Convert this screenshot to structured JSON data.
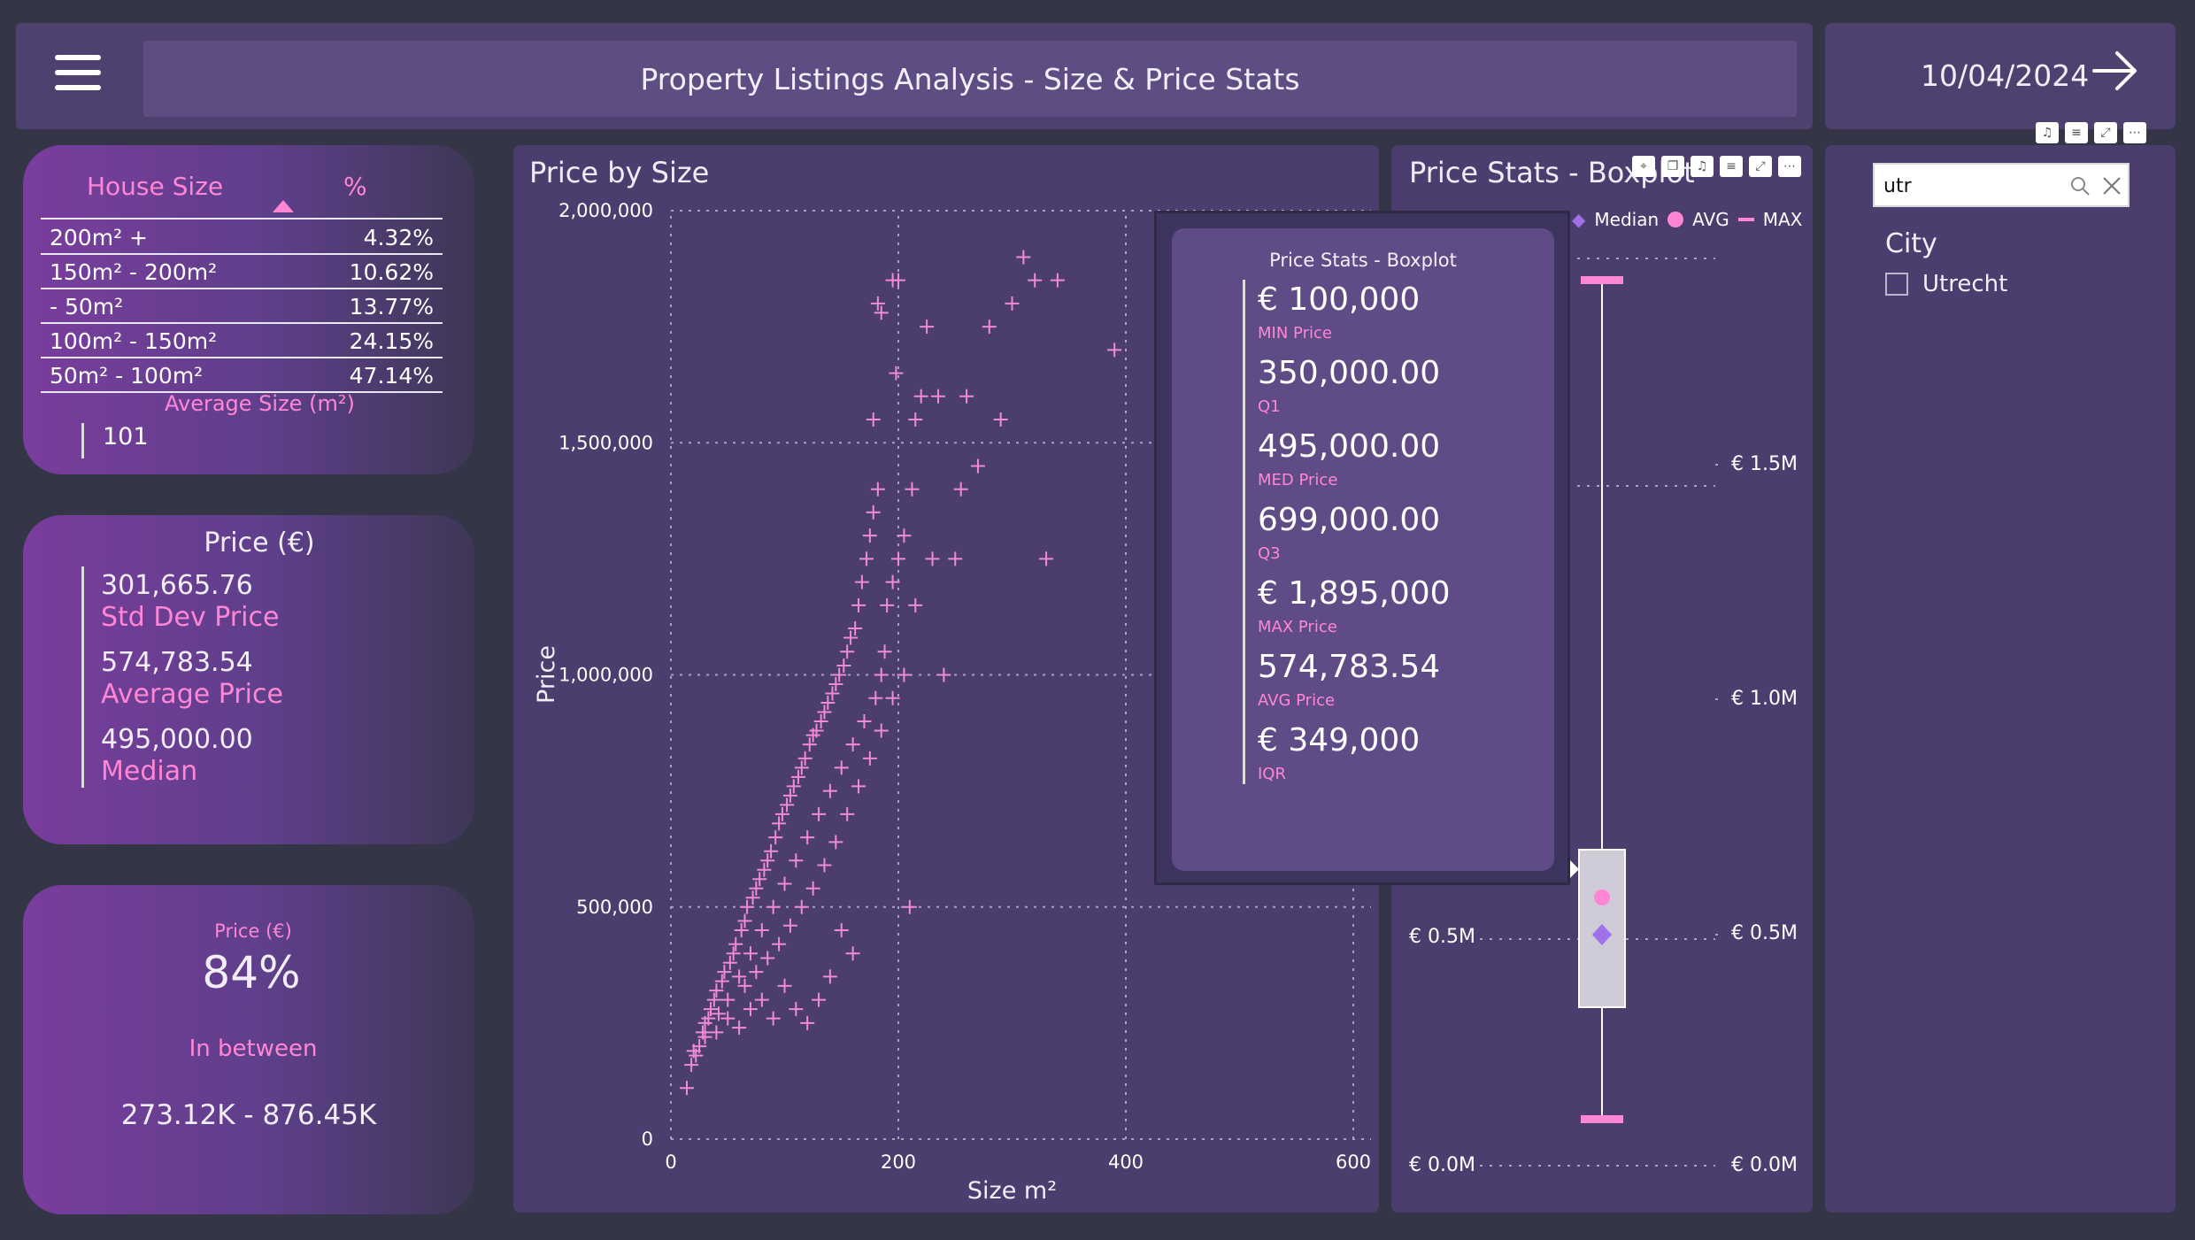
{
  "header": {
    "title": "Property Listings Analysis - Size & Price Stats",
    "date": "10/04/2024"
  },
  "house_size": {
    "col_size": "House Size",
    "col_pct": "%",
    "rows": [
      {
        "label": "200m² +",
        "pct": "4.32%"
      },
      {
        "label": "150m² - 200m²",
        "pct": "10.62%"
      },
      {
        "label": "- 50m²",
        "pct": "13.77%"
      },
      {
        "label": "100m² - 150m²",
        "pct": "24.15%"
      },
      {
        "label": "50m² - 100m²",
        "pct": "47.14%"
      }
    ],
    "avg_label": "Average Size (m²)",
    "avg_value": "101"
  },
  "price_card": {
    "title": "Price (€)",
    "std_value": "301,665.76",
    "std_label": "Std Dev Price",
    "avg_value": "574,783.54",
    "avg_label": "Average Price",
    "median_value": "495,000.00",
    "median_label": "Median"
  },
  "pct_card": {
    "title": "Price (€)",
    "value": "84%",
    "label": "In between",
    "range": "273.12K - 876.45K"
  },
  "chart_data": {
    "type": "scatter",
    "title": "Price by Size",
    "xlabel": "Size m²",
    "ylabel": "Price",
    "xlim": [
      0,
      600
    ],
    "ylim": [
      0,
      2000000
    ],
    "x_ticks": [
      "0",
      "200",
      "400",
      "600"
    ],
    "y_ticks": [
      "0",
      "500,000",
      "1,000,000",
      "1,500,000",
      "2,000,000"
    ],
    "points": [
      [
        14,
        110000
      ],
      [
        18,
        160000
      ],
      [
        22,
        180000
      ],
      [
        25,
        200000
      ],
      [
        28,
        230000
      ],
      [
        30,
        250000
      ],
      [
        33,
        260000
      ],
      [
        35,
        280000
      ],
      [
        38,
        300000
      ],
      [
        40,
        320000
      ],
      [
        42,
        270000
      ],
      [
        45,
        340000
      ],
      [
        47,
        360000
      ],
      [
        50,
        300000
      ],
      [
        52,
        380000
      ],
      [
        55,
        400000
      ],
      [
        57,
        420000
      ],
      [
        60,
        350000
      ],
      [
        62,
        450000
      ],
      [
        65,
        470000
      ],
      [
        67,
        500000
      ],
      [
        70,
        400000
      ],
      [
        72,
        520000
      ],
      [
        75,
        540000
      ],
      [
        78,
        560000
      ],
      [
        80,
        450000
      ],
      [
        82,
        580000
      ],
      [
        85,
        600000
      ],
      [
        88,
        620000
      ],
      [
        90,
        500000
      ],
      [
        92,
        650000
      ],
      [
        95,
        680000
      ],
      [
        98,
        700000
      ],
      [
        100,
        550000
      ],
      [
        102,
        720000
      ],
      [
        105,
        740000
      ],
      [
        108,
        760000
      ],
      [
        110,
        600000
      ],
      [
        112,
        780000
      ],
      [
        115,
        800000
      ],
      [
        118,
        820000
      ],
      [
        120,
        650000
      ],
      [
        122,
        850000
      ],
      [
        125,
        870000
      ],
      [
        128,
        880000
      ],
      [
        130,
        700000
      ],
      [
        132,
        900000
      ],
      [
        135,
        920000
      ],
      [
        138,
        940000
      ],
      [
        140,
        750000
      ],
      [
        142,
        960000
      ],
      [
        145,
        980000
      ],
      [
        148,
        1000000
      ],
      [
        150,
        800000
      ],
      [
        152,
        1020000
      ],
      [
        155,
        1050000
      ],
      [
        158,
        1080000
      ],
      [
        160,
        850000
      ],
      [
        162,
        1100000
      ],
      [
        165,
        1150000
      ],
      [
        168,
        1200000
      ],
      [
        170,
        900000
      ],
      [
        172,
        1250000
      ],
      [
        175,
        1300000
      ],
      [
        178,
        1350000
      ],
      [
        180,
        950000
      ],
      [
        182,
        1400000
      ],
      [
        185,
        1000000
      ],
      [
        188,
        1050000
      ],
      [
        190,
        1150000
      ],
      [
        195,
        1200000
      ],
      [
        200,
        1250000
      ],
      [
        205,
        1300000
      ],
      [
        210,
        500000
      ],
      [
        212,
        1400000
      ],
      [
        215,
        1550000
      ],
      [
        220,
        1600000
      ],
      [
        225,
        1750000
      ],
      [
        230,
        1250000
      ],
      [
        235,
        1600000
      ],
      [
        240,
        1000000
      ],
      [
        250,
        1250000
      ],
      [
        255,
        1400000
      ],
      [
        260,
        1600000
      ],
      [
        270,
        1450000
      ],
      [
        280,
        1750000
      ],
      [
        290,
        1550000
      ],
      [
        300,
        1800000
      ],
      [
        310,
        1900000
      ],
      [
        320,
        1850000
      ],
      [
        330,
        1250000
      ],
      [
        340,
        1850000
      ],
      [
        390,
        1700000
      ],
      [
        160,
        400000
      ],
      [
        150,
        450000
      ],
      [
        140,
        350000
      ],
      [
        130,
        300000
      ],
      [
        120,
        250000
      ],
      [
        110,
        280000
      ],
      [
        100,
        330000
      ],
      [
        90,
        260000
      ],
      [
        80,
        300000
      ],
      [
        70,
        280000
      ],
      [
        60,
        240000
      ],
      [
        50,
        260000
      ],
      [
        40,
        230000
      ],
      [
        30,
        220000
      ],
      [
        20,
        190000
      ],
      [
        65,
        330000
      ],
      [
        75,
        360000
      ],
      [
        85,
        390000
      ],
      [
        95,
        420000
      ],
      [
        105,
        460000
      ],
      [
        115,
        500000
      ],
      [
        125,
        540000
      ],
      [
        135,
        590000
      ],
      [
        145,
        640000
      ],
      [
        155,
        700000
      ],
      [
        165,
        760000
      ],
      [
        175,
        820000
      ],
      [
        185,
        880000
      ],
      [
        195,
        950000
      ],
      [
        205,
        1000000
      ],
      [
        215,
        1150000
      ],
      [
        178,
        1550000
      ],
      [
        185,
        1780000
      ],
      [
        195,
        1850000
      ],
      [
        200,
        1850000
      ],
      [
        198,
        1650000
      ],
      [
        182,
        1800000
      ]
    ]
  },
  "boxplot": {
    "title": "Price Stats - Boxplot",
    "legend": [
      "Median",
      "AVG",
      "MAX"
    ],
    "axis_left": [
      "€ 0.5M",
      "€ 0.0M"
    ],
    "axis_right": [
      "€ 1.5M",
      "€ 1.0M",
      "€ 0.5M",
      "€ 0.0M"
    ]
  },
  "tooltip": {
    "title": "Price Stats - Boxplot",
    "items": [
      {
        "value": "€ 100,000",
        "label": "MIN Price"
      },
      {
        "value": "350,000.00",
        "label": "Q1"
      },
      {
        "value": "495,000.00",
        "label": "MED Price"
      },
      {
        "value": "699,000.00",
        "label": "Q3"
      },
      {
        "value": "€ 1,895,000",
        "label": "MAX Price"
      },
      {
        "value": "574,783.54",
        "label": "AVG Price"
      },
      {
        "value": "€ 349,000",
        "label": "IQR"
      }
    ]
  },
  "slicer": {
    "search_value": "utr",
    "title": "City",
    "options": [
      "Utrecht"
    ]
  },
  "colors": {
    "accent": "#ff86d4",
    "point": "#f08ad6",
    "bg": "#343647",
    "panel": "#4b3e6e"
  }
}
